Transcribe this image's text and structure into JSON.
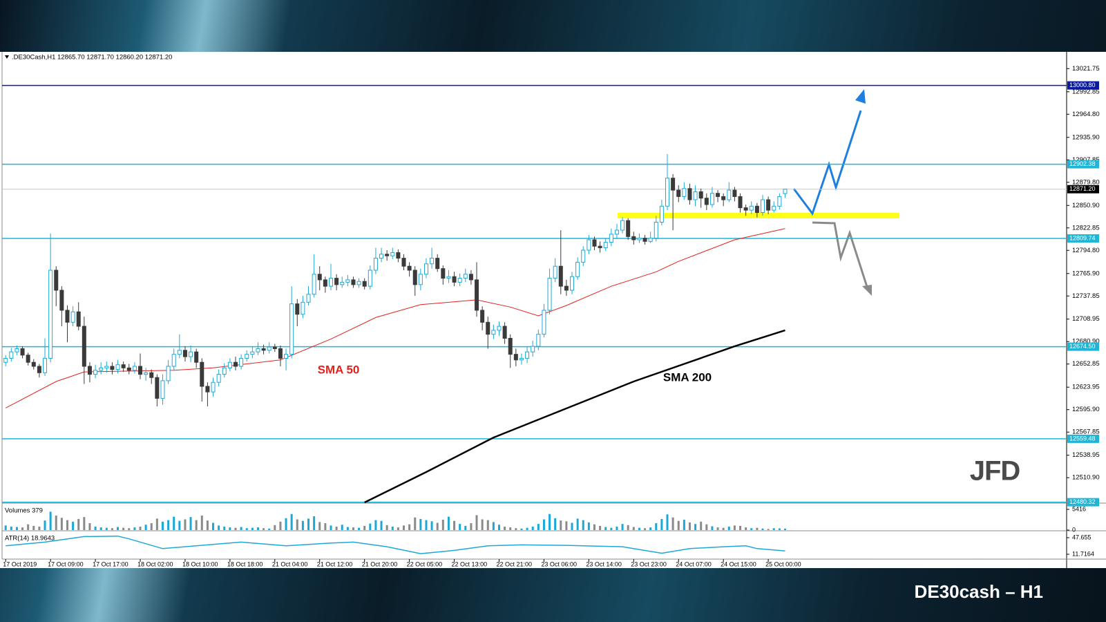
{
  "chart_data": {
    "type": "candlestick",
    "header": ".DE30Cash,H1  12865.70 12871.70 12860.20 12871.20",
    "footer": "DE30cash – H1",
    "logo": "JFD",
    "up_color": "#1ca8d6",
    "down_color": "#3a3a3a",
    "ylim": [
      12480,
      13041
    ],
    "yticks": [
      13021.75,
      12992.85,
      {
        "value": 12964.8,
        "label": "12964.80"
      },
      {
        "value": 12935.9,
        "label": "12935.90"
      },
      12907.85,
      {
        "value": 12879.8,
        "label": "12879.80"
      },
      {
        "value": 12850.9,
        "label": "12850.90"
      },
      12822.85,
      {
        "value": 12794.8,
        "label": "12794.80"
      },
      {
        "value": 12765.9,
        "label": "12765.90"
      },
      12737.85,
      12708.95,
      {
        "value": 12680.9,
        "label": "12680.90"
      },
      12652.85,
      12623.95,
      {
        "value": 12595.9,
        "label": "12595.90"
      },
      12567.85,
      12538.95,
      {
        "value": 12510.9,
        "label": "12510.90"
      }
    ],
    "levels": [
      {
        "value": 13000.8,
        "label": "13000.80",
        "color": "#0a1aa0"
      },
      {
        "value": 12902.38,
        "label": "12902.38",
        "color": "#1fb5d6"
      },
      {
        "value": 12871.2,
        "label": "12871.20",
        "color": "#c8c8c8",
        "label_color": "#000000"
      },
      {
        "value": 12809.74,
        "label": "12809.74",
        "color": "#1fb5d6"
      },
      {
        "value": 12674.5,
        "label": "12674.50",
        "color": "#1fb5d6"
      },
      {
        "value": 12559.48,
        "label": "12559.48",
        "color": "#1fb5d6"
      },
      {
        "value": 12480.32,
        "label": "12480.32",
        "color": "#1fb5d6"
      }
    ],
    "categories": [
      "17 Oct 2019",
      null,
      null,
      null,
      null,
      null,
      null,
      null,
      "17 Oct 09:00",
      null,
      null,
      null,
      null,
      null,
      null,
      null,
      "17 Oct 17:00",
      null,
      null,
      null,
      null,
      null,
      null,
      null,
      "18 Oct 02:00",
      null,
      null,
      null,
      null,
      null,
      null,
      null,
      "18 Oct 10:00",
      null,
      null,
      null,
      null,
      null,
      null,
      null,
      "18 Oct 18:00",
      null,
      null,
      null,
      null,
      null,
      null,
      null,
      "21 Oct 04:00",
      null,
      null,
      null,
      null,
      null,
      null,
      null,
      "21 Oct 12:00",
      null,
      null,
      null,
      null,
      null,
      null,
      null,
      "21 Oct 20:00",
      null,
      null,
      null,
      null,
      null,
      null,
      null,
      "22 Oct 05:00",
      null,
      null,
      null,
      null,
      null,
      null,
      null,
      "22 Oct 13:00",
      null,
      null,
      null,
      null,
      null,
      null,
      null,
      "22 Oct 21:00",
      null,
      null,
      null,
      null,
      null,
      null,
      null,
      "23 Oct 06:00",
      null,
      null,
      null,
      null,
      null,
      null,
      null,
      "23 Oct 14:00",
      null,
      null,
      null,
      null,
      null,
      null,
      null,
      "23 Oct 23:00",
      null,
      null,
      null,
      null,
      null,
      null,
      null,
      "24 Oct 07:00",
      null,
      null,
      null,
      null,
      null,
      null,
      null,
      "24 Oct 15:00",
      null,
      null,
      null,
      null,
      null,
      null,
      null,
      "25 Oct 00:00",
      null,
      null,
      null
    ],
    "open": [
      12655,
      12660,
      12668,
      12672,
      12664,
      12655,
      12650,
      12642,
      12660,
      12770,
      12745,
      12720,
      12705,
      12718,
      12700,
      12650,
      12640,
      12645,
      12648,
      12650,
      12646,
      12652,
      12648,
      12645,
      12650,
      12640,
      12642,
      12636,
      12610,
      12632,
      12650,
      12665,
      12670,
      12662,
      12668,
      12655,
      12625,
      12618,
      12630,
      12640,
      12648,
      12655,
      12650,
      12660,
      12665,
      12668,
      12672,
      12670,
      12674,
      12672,
      12660,
      12665,
      12728,
      12715,
      12730,
      12740,
      12765,
      12758,
      12750,
      12760,
      12752,
      12755,
      12758,
      12752,
      12756,
      12750,
      12770,
      12785,
      12790,
      12788,
      12792,
      12785,
      12775,
      12770,
      12752,
      12765,
      12778,
      12785,
      12772,
      12760,
      12762,
      12755,
      12760,
      12765,
      12758,
      12720,
      12705,
      12690,
      12695,
      12700,
      12685,
      12665,
      12658,
      12660,
      12668,
      12675,
      12690,
      12720,
      12760,
      12775,
      12750,
      12745,
      12762,
      12780,
      12795,
      12808,
      12800,
      12798,
      12805,
      12815,
      12820,
      12832,
      12812,
      12808,
      12810,
      12806,
      12810,
      12830,
      12850,
      12885,
      12870,
      12862,
      12872,
      12858,
      12868,
      12860,
      12852,
      12866,
      12862,
      12858,
      12870,
      12862,
      12848,
      12845,
      12850,
      12842,
      12858,
      12845,
      12850,
      12865.7
    ],
    "high": [
      12664,
      12673,
      12676,
      12675,
      12667,
      12659,
      12653,
      12685,
      12816,
      12775,
      12750,
      12726,
      12725,
      12730,
      12712,
      12655,
      12652,
      12655,
      12656,
      12655,
      12658,
      12656,
      12653,
      12655,
      12666,
      12648,
      12646,
      12640,
      12640,
      12658,
      12672,
      12690,
      12675,
      12676,
      12672,
      12660,
      12630,
      12636,
      12646,
      12654,
      12660,
      12662,
      12665,
      12670,
      12675,
      12680,
      12677,
      12680,
      12678,
      12676,
      12672,
      12750,
      12734,
      12738,
      12750,
      12790,
      12775,
      12762,
      12778,
      12765,
      12762,
      12764,
      12762,
      12760,
      12760,
      12776,
      12798,
      12798,
      12795,
      12798,
      12796,
      12790,
      12780,
      12775,
      12772,
      12785,
      12798,
      12790,
      12776,
      12770,
      12768,
      12766,
      12772,
      12770,
      12780,
      12725,
      12712,
      12702,
      12706,
      12705,
      12690,
      12672,
      12666,
      12674,
      12682,
      12696,
      12728,
      12772,
      12785,
      12820,
      12758,
      12768,
      12786,
      12800,
      12814,
      12812,
      12806,
      12810,
      12822,
      12828,
      12836,
      12835,
      12818,
      12816,
      12814,
      12818,
      12838,
      12858,
      12915,
      12890,
      12876,
      12880,
      12878,
      12876,
      12872,
      12866,
      12874,
      12870,
      12866,
      12880,
      12874,
      12866,
      12852,
      12856,
      12854,
      12864,
      12862,
      12856,
      12866,
      12871.7
    ],
    "low": [
      12650,
      12656,
      12664,
      12660,
      12651,
      12646,
      12636,
      12638,
      12655,
      12725,
      12700,
      12680,
      12700,
      12695,
      12628,
      12630,
      12635,
      12640,
      12642,
      12640,
      12641,
      12643,
      12640,
      12641,
      12634,
      12632,
      12628,
      12600,
      12602,
      12628,
      12645,
      12660,
      12656,
      12655,
      12648,
      12606,
      12600,
      12612,
      12625,
      12636,
      12644,
      12645,
      12646,
      12656,
      12660,
      12664,
      12665,
      12666,
      12668,
      12650,
      12645,
      12660,
      12700,
      12710,
      12726,
      12736,
      12745,
      12742,
      12745,
      12745,
      12748,
      12750,
      12748,
      12748,
      12746,
      12746,
      12765,
      12780,
      12782,
      12784,
      12780,
      12770,
      12762,
      12738,
      12745,
      12760,
      12772,
      12768,
      12752,
      12754,
      12750,
      12750,
      12755,
      12752,
      12712,
      12695,
      12672,
      12684,
      12688,
      12678,
      12648,
      12650,
      12652,
      12654,
      12662,
      12670,
      12686,
      12715,
      12755,
      12740,
      12738,
      12740,
      12758,
      12775,
      12790,
      12795,
      12792,
      12794,
      12800,
      12810,
      12816,
      12808,
      12802,
      12804,
      12802,
      12804,
      12806,
      12826,
      12845,
      12820,
      12855,
      12858,
      12852,
      12850,
      12848,
      12845,
      12848,
      12855,
      12850,
      12855,
      12856,
      12842,
      12838,
      12840,
      12836,
      12838,
      12840,
      12842,
      12846,
      12860.2
    ],
    "close": [
      12660,
      12668,
      12672,
      12664,
      12655,
      12650,
      12642,
      12660,
      12770,
      12745,
      12720,
      12705,
      12718,
      12700,
      12650,
      12640,
      12645,
      12648,
      12650,
      12646,
      12652,
      12648,
      12645,
      12650,
      12640,
      12642,
      12636,
      12610,
      12632,
      12650,
      12665,
      12670,
      12662,
      12668,
      12655,
      12625,
      12618,
      12630,
      12640,
      12648,
      12655,
      12650,
      12660,
      12665,
      12668,
      12672,
      12670,
      12674,
      12672,
      12660,
      12665,
      12728,
      12715,
      12730,
      12740,
      12765,
      12758,
      12750,
      12760,
      12752,
      12755,
      12758,
      12752,
      12756,
      12750,
      12770,
      12785,
      12790,
      12788,
      12792,
      12785,
      12775,
      12770,
      12752,
      12765,
      12778,
      12785,
      12772,
      12760,
      12762,
      12755,
      12760,
      12765,
      12758,
      12720,
      12705,
      12690,
      12695,
      12700,
      12685,
      12665,
      12658,
      12660,
      12668,
      12675,
      12690,
      12720,
      12760,
      12775,
      12750,
      12745,
      12762,
      12780,
      12795,
      12808,
      12800,
      12798,
      12805,
      12815,
      12820,
      12832,
      12812,
      12808,
      12810,
      12806,
      12810,
      12830,
      12850,
      12885,
      12870,
      12862,
      12872,
      12858,
      12868,
      12860,
      12852,
      12866,
      12862,
      12858,
      12870,
      12862,
      12848,
      12845,
      12850,
      12842,
      12858,
      12845,
      12850,
      12862,
      12871.2
    ],
    "lines": [
      {
        "name": "SMA 50",
        "color": "#e3211c",
        "width": 1,
        "x": [
          0,
          9,
          14,
          30,
          37,
          49,
          58,
          66,
          74,
          84,
          90,
          95,
          100,
          108,
          116,
          120,
          130,
          139
        ],
        "values": [
          12598,
          12631,
          12643,
          12645,
          12648,
          12658,
          12684,
          12711,
          12727,
          12733,
          12724,
          12713,
          12726,
          12750,
          12768,
          12781,
          12808,
          12822
        ]
      },
      {
        "name": "SMA 200",
        "color": "#000000",
        "width": 2.5,
        "x": [
          64,
          75,
          87,
          112,
          130,
          139
        ],
        "values": [
          12480,
          12518,
          12561,
          12631,
          12675,
          12695
        ]
      }
    ],
    "volume": {
      "title": "Volumes 379",
      "ylim": [
        0,
        6500
      ],
      "yticks": [
        0,
        5416
      ],
      "values": [
        1200,
        900,
        800,
        700,
        1500,
        1100,
        900,
        2500,
        4800,
        3800,
        3200,
        2600,
        2200,
        2900,
        3400,
        1800,
        900,
        700,
        600,
        500,
        800,
        600,
        500,
        700,
        900,
        1400,
        1800,
        3000,
        2200,
        2600,
        3500,
        2400,
        2800,
        3400,
        2600,
        3800,
        2500,
        1900,
        1200,
        900,
        700,
        600,
        800,
        500,
        600,
        700,
        500,
        400,
        1300,
        2200,
        3100,
        4200,
        2800,
        2400,
        3000,
        3600,
        2100,
        1800,
        1200,
        900,
        1400,
        800,
        700,
        600,
        1100,
        1700,
        2600,
        2400,
        1300,
        900,
        700,
        1200,
        1500,
        3300,
        2900,
        2600,
        2300,
        1900,
        2700,
        3500,
        2400,
        1600,
        1100,
        1800,
        3900,
        2800,
        2600,
        2100,
        1400,
        900,
        700,
        500,
        400,
        600,
        900,
        1600,
        2800,
        4200,
        3100,
        2500,
        2300,
        1900,
        3000,
        2600,
        2000,
        1500,
        1100,
        800,
        600,
        900,
        1600,
        1300,
        800,
        600,
        500,
        700,
        1800,
        2900,
        4100,
        3300,
        2400,
        2700,
        2000,
        1600,
        2200,
        1500,
        1000,
        700,
        600,
        900,
        1200,
        1100,
        700,
        500,
        600,
        400,
        300,
        500,
        450,
        379
      ]
    },
    "atr": {
      "title": "ATR(14) 18.9643",
      "color": "#1ca8d6",
      "ylim": [
        4.2,
        58.1
      ],
      "yticks": [
        47.655,
        11.7164
      ],
      "x": [
        0,
        7,
        14,
        20,
        22,
        28,
        36,
        42,
        50,
        58,
        62,
        68,
        74,
        80,
        86,
        92,
        100,
        110,
        117,
        122,
        128,
        132,
        134,
        139
      ],
      "values": [
        30,
        38,
        50,
        51,
        45,
        24,
        32,
        38,
        30,
        36,
        38,
        28,
        13,
        20,
        30,
        32,
        31,
        28,
        14,
        24,
        28,
        30,
        24,
        18.9643
      ]
    }
  }
}
